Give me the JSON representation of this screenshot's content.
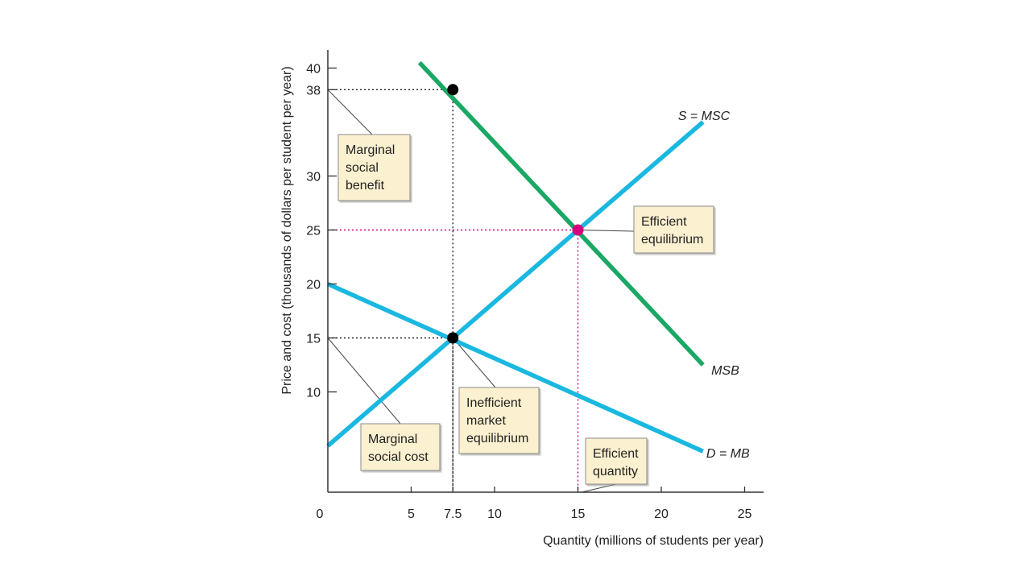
{
  "chart_data": {
    "type": "line",
    "xlabel": "Quantity (millions of students per year)",
    "ylabel": "Price and cost (thousands of dollars per student per year)",
    "xlim": [
      0,
      26
    ],
    "ylim": [
      0,
      41.5
    ],
    "x_ticks": [
      {
        "value": 0,
        "label": "0",
        "color": "#222222"
      },
      {
        "value": 5,
        "label": "5",
        "color": "#222222"
      },
      {
        "value": 7.5,
        "label": "7.5",
        "color": "#222222"
      },
      {
        "value": 10,
        "label": "10",
        "color": "#222222"
      },
      {
        "value": 15,
        "label": "15",
        "color": "#d6007e"
      },
      {
        "value": 20,
        "label": "20",
        "color": "#222222"
      },
      {
        "value": 25,
        "label": "25",
        "color": "#222222"
      }
    ],
    "y_ticks": [
      {
        "value": 10,
        "label": "10",
        "color": "#222222"
      },
      {
        "value": 15,
        "label": "15",
        "color": "#222222"
      },
      {
        "value": 20,
        "label": "20",
        "color": "#222222"
      },
      {
        "value": 25,
        "label": "25",
        "color": "#d6007e"
      },
      {
        "value": 30,
        "label": "30",
        "color": "#222222"
      },
      {
        "value": 38,
        "label": "38",
        "color": "#222222"
      },
      {
        "value": 40,
        "label": "40",
        "color": "#222222"
      }
    ],
    "series": [
      {
        "name": "S = MSC",
        "color": "#1ab8e0",
        "points": [
          [
            0,
            5
          ],
          [
            22.5,
            35
          ]
        ]
      },
      {
        "name": "D = MB",
        "color": "#1ab8e0",
        "points": [
          [
            0,
            20
          ],
          [
            22.5,
            4.5
          ]
        ]
      },
      {
        "name": "MSB",
        "color": "#1aa864",
        "points": [
          [
            5.5,
            40.5
          ],
          [
            22.5,
            12.5
          ]
        ]
      }
    ],
    "curve_labels": [
      {
        "text": "S = MSC",
        "x": 21.0,
        "y": 35.2
      },
      {
        "text": "MSB",
        "x": 23.0,
        "y": 11.6
      },
      {
        "text": "D = MB",
        "x": 22.7,
        "y": 3.9
      }
    ],
    "points": [
      {
        "name": "msb-point",
        "x": 7.5,
        "y": 38,
        "color": "#000000"
      },
      {
        "name": "efficient-equilibrium-point",
        "x": 15,
        "y": 25,
        "color": "#d6007e"
      },
      {
        "name": "inefficient-equilibrium-point",
        "x": 7.5,
        "y": 15,
        "color": "#000000"
      }
    ],
    "guides": [
      {
        "x": 7.5,
        "y": 38,
        "color": "#222222"
      },
      {
        "x": 15,
        "y": 25,
        "color": "#d6007e"
      },
      {
        "x": 7.5,
        "y": 15,
        "color": "#222222"
      }
    ],
    "annotations": [
      {
        "name": "annotation-marginal-social-benefit",
        "lines": [
          "Marginal",
          "social",
          "benefit"
        ],
        "anchor": [
          0,
          38
        ]
      },
      {
        "name": "annotation-efficient-equilibrium",
        "lines": [
          "Efficient",
          "equilibrium"
        ],
        "anchor": [
          15,
          25
        ]
      },
      {
        "name": "annotation-inefficient-market-equilibrium",
        "lines": [
          "Inefficient",
          "market",
          "equilibrium"
        ],
        "anchor": [
          7.5,
          15
        ]
      },
      {
        "name": "annotation-marginal-social-cost",
        "lines": [
          "Marginal",
          "social cost"
        ],
        "anchor": [
          0,
          15
        ]
      },
      {
        "name": "annotation-efficient-quantity",
        "lines": [
          "Efficient",
          "quantity"
        ],
        "anchor": [
          15,
          0
        ]
      }
    ],
    "colors": {
      "supply": "#1ab8e0",
      "demand": "#1ab8e0",
      "msb": "#1aa864",
      "highlight": "#d6007e",
      "box_fill": "#fbf0cf",
      "box_border": "#8a8a8a"
    }
  }
}
